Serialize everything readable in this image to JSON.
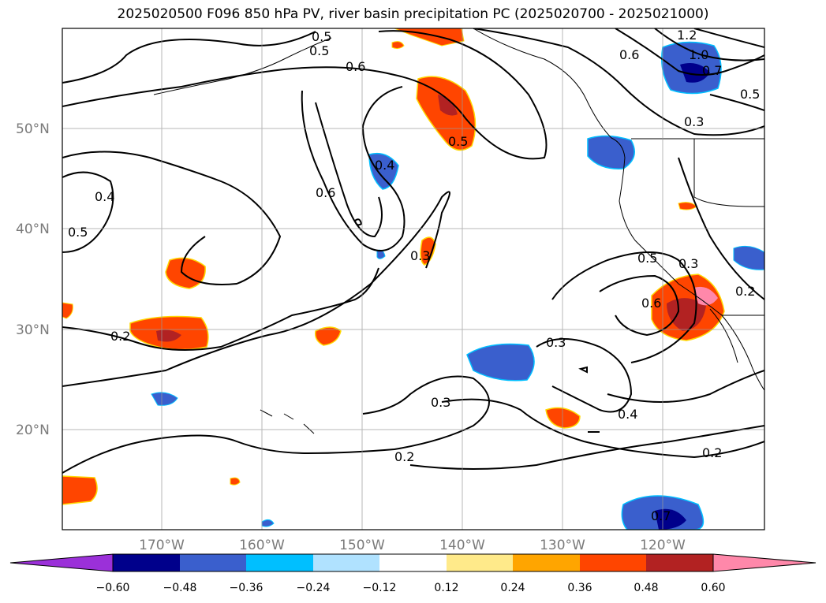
{
  "title": "2025020500 F096 850 hPa PV, river basin precipitation PC (2025020700 - 2025021000)",
  "map": {
    "latitude_labels": [
      "50°N",
      "40°N",
      "30°N",
      "20°N"
    ],
    "longitude_labels": [
      "170°W",
      "160°W",
      "150°W",
      "140°W",
      "130°W",
      "120°W"
    ],
    "contour_labels": [
      "0.5",
      "0.6",
      "0.5",
      "1.2",
      "1.0",
      "0.7",
      "0.5",
      "0.6",
      "0.3",
      "0.4",
      "0.6",
      "0.4",
      "0.5",
      "0.5",
      "0.3",
      "0.2",
      "0.5",
      "0.3",
      "0.6",
      "0.2",
      "0.3",
      "0.3",
      "0.4",
      "0.2",
      "0.2",
      "0.7"
    ]
  },
  "colorbar": {
    "ticks": [
      "−0.60",
      "−0.48",
      "−0.36",
      "−0.24",
      "−0.12",
      "0.12",
      "0.24",
      "0.36",
      "0.48",
      "0.60"
    ],
    "colors": [
      "#9b30d9",
      "#00008b",
      "#3a5fcd",
      "#00bfff",
      "#b0e2ff",
      "#ffffff",
      "#ffea8a",
      "#ffa500",
      "#ff4500",
      "#b22222",
      "#ff88aa"
    ]
  }
}
